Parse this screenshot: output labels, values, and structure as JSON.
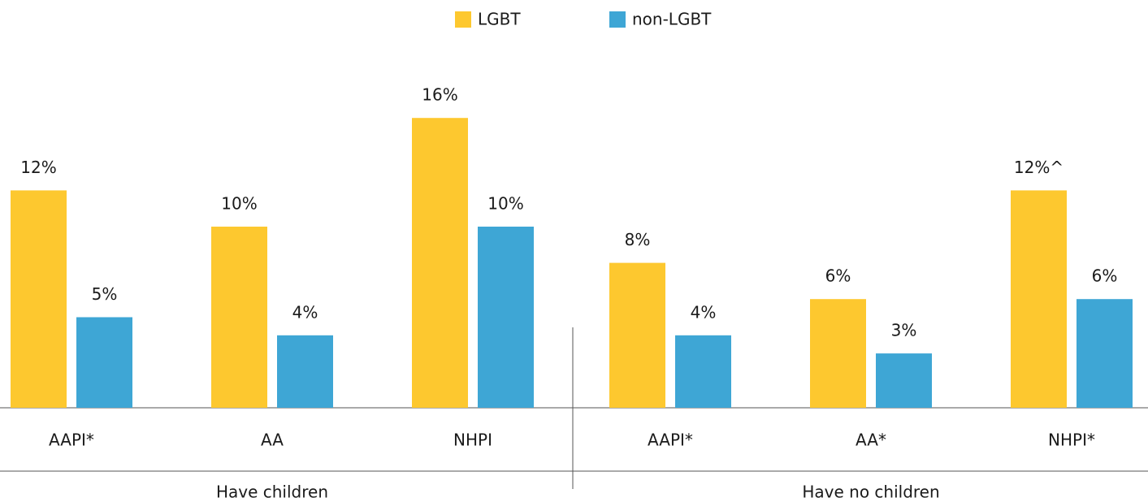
{
  "chart_data": {
    "type": "bar",
    "categories": [
      "AAPI*",
      "AA",
      "NHPI",
      "AAPI*",
      "AA*",
      "NHPI*"
    ],
    "groups": [
      "Have children",
      "Have no children"
    ],
    "series": [
      {
        "name": "LGBT",
        "color": "#fdc82f",
        "values": [
          12,
          10,
          16,
          8,
          6,
          12
        ],
        "value_labels": [
          "12%",
          "10%",
          "16%",
          "8%",
          "6%",
          "12%^"
        ]
      },
      {
        "name": "non-LGBT",
        "color": "#3ea6d5",
        "values": [
          5,
          4,
          10,
          4,
          3,
          6
        ],
        "value_labels": [
          "5%",
          "4%",
          "10%",
          "4%",
          "3%",
          "6%"
        ]
      }
    ]
  }
}
